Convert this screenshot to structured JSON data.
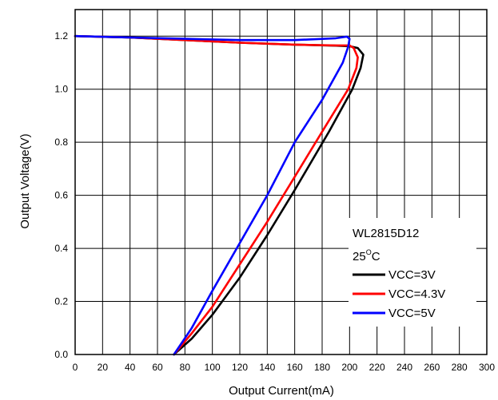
{
  "chart_data": {
    "type": "line",
    "xlabel": "Output Current(mA)",
    "ylabel": "Output Voltage(V)",
    "xlim": [
      0,
      300
    ],
    "ylim": [
      0,
      1.3
    ],
    "xticks": [
      "0",
      "20",
      "40",
      "60",
      "80",
      "100",
      "120",
      "140",
      "160",
      "180",
      "200",
      "220",
      "240",
      "260",
      "280",
      "300"
    ],
    "yticks": [
      "0.0",
      "0.2",
      "0.4",
      "0.6",
      "0.8",
      "1.0",
      "1.2"
    ],
    "grid": true,
    "legend": {
      "placement": "bottom-right",
      "title": "WL2815D12",
      "subtitle_base": "25",
      "subtitle_sup": "O",
      "subtitle_unit": "C"
    },
    "series": [
      {
        "name": "VCC=3V",
        "color": "#000000",
        "points": [
          [
            0,
            1.2
          ],
          [
            40,
            1.195
          ],
          [
            80,
            1.185
          ],
          [
            120,
            1.175
          ],
          [
            160,
            1.168
          ],
          [
            190,
            1.164
          ],
          [
            200,
            1.162
          ],
          [
            206,
            1.155
          ],
          [
            210,
            1.13
          ],
          [
            208,
            1.08
          ],
          [
            202,
            1.0
          ],
          [
            185,
            0.84
          ],
          [
            160,
            0.62
          ],
          [
            140,
            0.45
          ],
          [
            120,
            0.29
          ],
          [
            100,
            0.15
          ],
          [
            85,
            0.06
          ],
          [
            72,
            0.0
          ]
        ]
      },
      {
        "name": "VCC=4.3V",
        "color": "#ff0000",
        "points": [
          [
            0,
            1.2
          ],
          [
            40,
            1.195
          ],
          [
            80,
            1.185
          ],
          [
            120,
            1.175
          ],
          [
            160,
            1.168
          ],
          [
            190,
            1.165
          ],
          [
            200,
            1.165
          ],
          [
            203,
            1.155
          ],
          [
            206,
            1.12
          ],
          [
            205,
            1.08
          ],
          [
            199,
            1.0
          ],
          [
            180,
            0.84
          ],
          [
            160,
            0.67
          ],
          [
            140,
            0.5
          ],
          [
            120,
            0.34
          ],
          [
            100,
            0.18
          ],
          [
            85,
            0.08
          ],
          [
            72,
            0.0
          ]
        ]
      },
      {
        "name": "VCC=5V",
        "color": "#0000ff",
        "points": [
          [
            0,
            1.2
          ],
          [
            40,
            1.195
          ],
          [
            80,
            1.19
          ],
          [
            120,
            1.185
          ],
          [
            160,
            1.185
          ],
          [
            190,
            1.192
          ],
          [
            198,
            1.198
          ],
          [
            200,
            1.19
          ],
          [
            199,
            1.16
          ],
          [
            195,
            1.1
          ],
          [
            180,
            0.96
          ],
          [
            160,
            0.8
          ],
          [
            140,
            0.6
          ],
          [
            120,
            0.42
          ],
          [
            100,
            0.24
          ],
          [
            85,
            0.1
          ],
          [
            72,
            0.0
          ]
        ]
      }
    ]
  }
}
